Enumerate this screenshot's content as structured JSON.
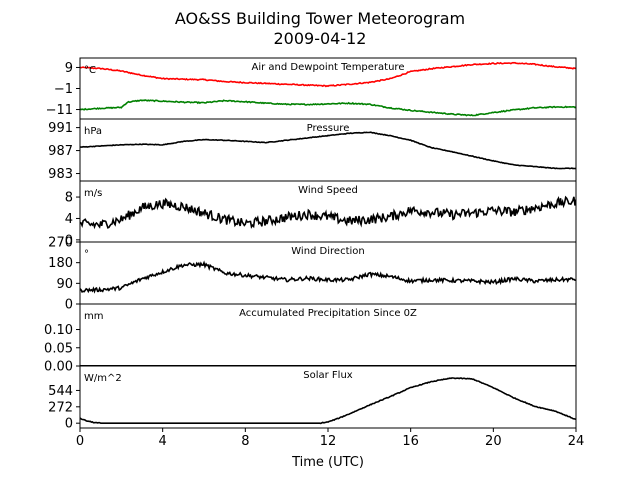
{
  "figure": {
    "title_line1": "AO&SS Building Tower Meteorogram",
    "title_line2": "2009-04-12",
    "xlabel": "Time (UTC)"
  },
  "chart_data": {
    "type": "line",
    "x_unit": "hours UTC",
    "xlim": [
      0,
      24
    ],
    "x_ticks": [
      0,
      4,
      8,
      12,
      16,
      20,
      24
    ],
    "x_tick_labels": [
      "0",
      "4",
      "8",
      "12",
      "16",
      "20",
      "24"
    ],
    "panels": [
      {
        "key": "temp",
        "title": "Air and Dewpoint Temperature",
        "unit": "°C",
        "ylim": [
          -15.5,
          13.5
        ],
        "y_ticks": [
          9,
          -1,
          -11
        ],
        "y_tick_labels": [
          "9",
          "−1",
          "−11"
        ],
        "noise": 0.25,
        "series": [
          {
            "name": "Air Temperature",
            "color": "#ff0000",
            "x": [
              0,
              1,
              2,
              3,
              4,
              5,
              6,
              7,
              8,
              9,
              10,
              11,
              12,
              13,
              14,
              15,
              16,
              17,
              18,
              19,
              20,
              21,
              22,
              23,
              24
            ],
            "y": [
              9,
              8.5,
              7.3,
              5.3,
              3.7,
              3.4,
              3.2,
              2.3,
              1.8,
              1.4,
              1.0,
              0.6,
              0.2,
              1.0,
              1.9,
              3.6,
              7.0,
              8.4,
              9.4,
              10.4,
              10.9,
              11.1,
              10.5,
              9.3,
              8.5
            ]
          },
          {
            "name": "Dewpoint",
            "color": "#008000",
            "x": [
              0,
              1,
              2,
              2.3,
              3,
              4,
              5,
              6,
              7,
              8,
              9,
              10,
              11,
              12,
              13,
              14,
              15,
              16,
              17,
              18,
              19,
              20,
              21,
              22,
              23,
              24
            ],
            "y": [
              -11,
              -10.4,
              -10.0,
              -7.5,
              -6.6,
              -7.0,
              -7.5,
              -7.8,
              -6.8,
              -7.3,
              -8.0,
              -8.5,
              -8.6,
              -8.3,
              -8.0,
              -8.5,
              -10.2,
              -11.4,
              -12.3,
              -13.2,
              -13.8,
              -12.4,
              -11.2,
              -10.2,
              -9.8,
              -9.8
            ]
          }
        ]
      },
      {
        "key": "pres",
        "title": "Pressure",
        "unit": "hPa",
        "ylim": [
          981.7,
          992.5
        ],
        "y_ticks": [
          991,
          987,
          983
        ],
        "y_tick_labels": [
          "991",
          "987",
          "983"
        ],
        "noise": 0.05,
        "series": [
          {
            "name": "Pressure",
            "color": "#000000",
            "x": [
              0,
              1,
              2,
              3,
              4,
              5,
              6,
              7,
              8,
              9,
              10,
              11,
              12,
              13,
              14,
              15,
              16,
              17,
              18,
              19,
              20,
              21,
              22,
              23,
              24
            ],
            "y": [
              987.6,
              987.8,
              988.0,
              988.1,
              988.0,
              988.6,
              988.9,
              988.8,
              988.6,
              988.4,
              988.8,
              989.2,
              989.6,
              990.0,
              990.2,
              989.6,
              988.8,
              987.5,
              986.8,
              986.0,
              985.2,
              984.5,
              984.2,
              983.9,
              983.9
            ]
          }
        ]
      },
      {
        "key": "wspd",
        "title": "Wind Speed",
        "unit": "m/s",
        "ylim": [
          -0.4,
          11.0
        ],
        "y_ticks": [
          8,
          4,
          0
        ],
        "y_tick_labels": [
          "8",
          "4",
          "0"
        ],
        "noise": 0.9,
        "series": [
          {
            "name": "Wind Speed",
            "color": "#000000",
            "x": [
              0,
              1,
              2,
              3,
              4,
              5,
              6,
              7,
              8,
              9,
              10,
              11,
              12,
              13,
              14,
              15,
              16,
              17,
              18,
              19,
              20,
              21,
              22,
              23,
              24
            ],
            "y": [
              3.0,
              2.8,
              3.8,
              6.0,
              6.8,
              6.2,
              5.0,
              3.8,
              3.0,
              3.5,
              4.2,
              4.8,
              4.3,
              3.5,
              3.8,
              4.3,
              5.5,
              5.2,
              4.7,
              5.0,
              5.5,
              5.2,
              6.0,
              6.8,
              7.3
            ]
          }
        ]
      },
      {
        "key": "wdir",
        "title": "Wind Direction",
        "unit": "°",
        "ylim": [
          0,
          270
        ],
        "y_ticks": [
          270,
          180,
          90,
          0
        ],
        "y_tick_labels": [
          "270",
          "180",
          "90",
          "0"
        ],
        "noise": 8,
        "series": [
          {
            "name": "Wind Direction",
            "color": "#000000",
            "x": [
              0,
              1,
              2,
              3,
              4,
              5,
              6,
              7,
              8,
              9,
              10,
              11,
              12,
              13,
              14,
              15,
              16,
              17,
              18,
              19,
              20,
              21,
              22,
              23,
              24
            ],
            "y": [
              60,
              62,
              70,
              110,
              140,
              170,
              172,
              135,
              125,
              115,
              105,
              112,
              105,
              105,
              130,
              120,
              100,
              105,
              102,
              100,
              95,
              110,
              100,
              105,
              108
            ]
          }
        ]
      },
      {
        "key": "prcp",
        "title": "Accumulated Precipitation Since 0Z",
        "unit": "mm",
        "ylim": [
          0,
          0.17
        ],
        "y_ticks": [
          0.1,
          0.05,
          0.0
        ],
        "y_tick_labels": [
          "0.10",
          "0.05",
          "0.00"
        ],
        "noise": 0,
        "series": [
          {
            "name": "Precipitation",
            "color": "#000000",
            "x": [
              0,
              24
            ],
            "y": [
              0,
              0
            ]
          }
        ]
      },
      {
        "key": "solar",
        "title": "Solar Flux",
        "unit": "W/m^2",
        "ylim": [
          -80,
          950
        ],
        "y_ticks": [
          544,
          272,
          0
        ],
        "y_tick_labels": [
          "544",
          "272",
          "0"
        ],
        "noise": 6,
        "series": [
          {
            "name": "Solar Flux",
            "color": "#000000",
            "x": [
              0,
              0.3,
              0.7,
              1,
              2,
              4,
              6,
              8,
              10,
              11.6,
              12,
              12.5,
              13,
              14,
              15,
              16,
              17,
              18,
              19,
              20,
              21,
              22,
              23,
              24
            ],
            "y": [
              80,
              40,
              10,
              0,
              0,
              0,
              0,
              0,
              0,
              0,
              20,
              80,
              150,
              300,
              440,
              590,
              690,
              750,
              735,
              590,
              420,
              280,
              200,
              60
            ]
          }
        ]
      }
    ]
  }
}
